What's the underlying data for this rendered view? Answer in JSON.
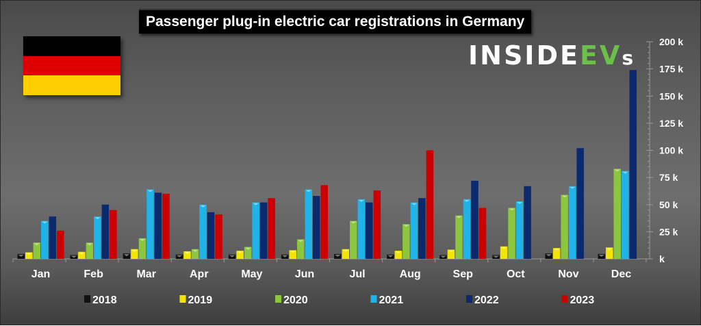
{
  "chart_data": {
    "type": "bar",
    "title": "Passenger plug-in electric car registrations in Germany",
    "brand": {
      "part1": "INSIDE",
      "part2": "EV",
      "part3": "s"
    },
    "flag": {
      "name": "Germany",
      "colors": [
        "#000000",
        "#dd0000",
        "#ffce00"
      ]
    },
    "xlabel": "",
    "ylabel": "",
    "ylim": [
      0,
      200
    ],
    "yticks": [
      0,
      25,
      50,
      75,
      100,
      125,
      150,
      175,
      200
    ],
    "ytick_labels": [
      "k",
      "25 k",
      "50 k",
      "75 k",
      "100 k",
      "125 k",
      "150 k",
      "175 k",
      "200 k"
    ],
    "y_axis_position": "right",
    "grid": false,
    "legend_position": "bottom",
    "categories": [
      "Jan",
      "Feb",
      "Mar",
      "Apr",
      "May",
      "Jun",
      "Jul",
      "Aug",
      "Sep",
      "Oct",
      "Nov",
      "Dec"
    ],
    "series": [
      {
        "name": "2018",
        "color": "#111111",
        "values": [
          4.5,
          3.5,
          5,
          4,
          4,
          4,
          4.5,
          4,
          3.5,
          3.5,
          5,
          4.5
        ]
      },
      {
        "name": "2019",
        "color": "#f2e600",
        "values": [
          6,
          6.5,
          9,
          7,
          7.5,
          8,
          9,
          7.5,
          8.5,
          11.5,
          10,
          10.5
        ]
      },
      {
        "name": "2020",
        "color": "#8cc63f",
        "values": [
          15,
          15,
          19,
          9,
          11,
          18,
          35,
          32,
          40,
          47,
          59,
          83
        ]
      },
      {
        "name": "2021",
        "color": "#1fb3e8",
        "values": [
          35,
          39,
          64,
          50,
          52,
          64,
          55,
          52,
          55,
          53,
          67,
          81
        ]
      },
      {
        "name": "2022",
        "color": "#0b2a6e",
        "values": [
          39,
          50,
          61,
          43,
          52,
          58,
          52,
          56,
          72,
          67,
          102,
          174
        ]
      },
      {
        "name": "2023",
        "color": "#cc0000",
        "values": [
          26,
          45,
          60,
          41,
          56,
          68,
          63,
          100,
          47,
          null,
          null,
          null
        ]
      }
    ]
  }
}
